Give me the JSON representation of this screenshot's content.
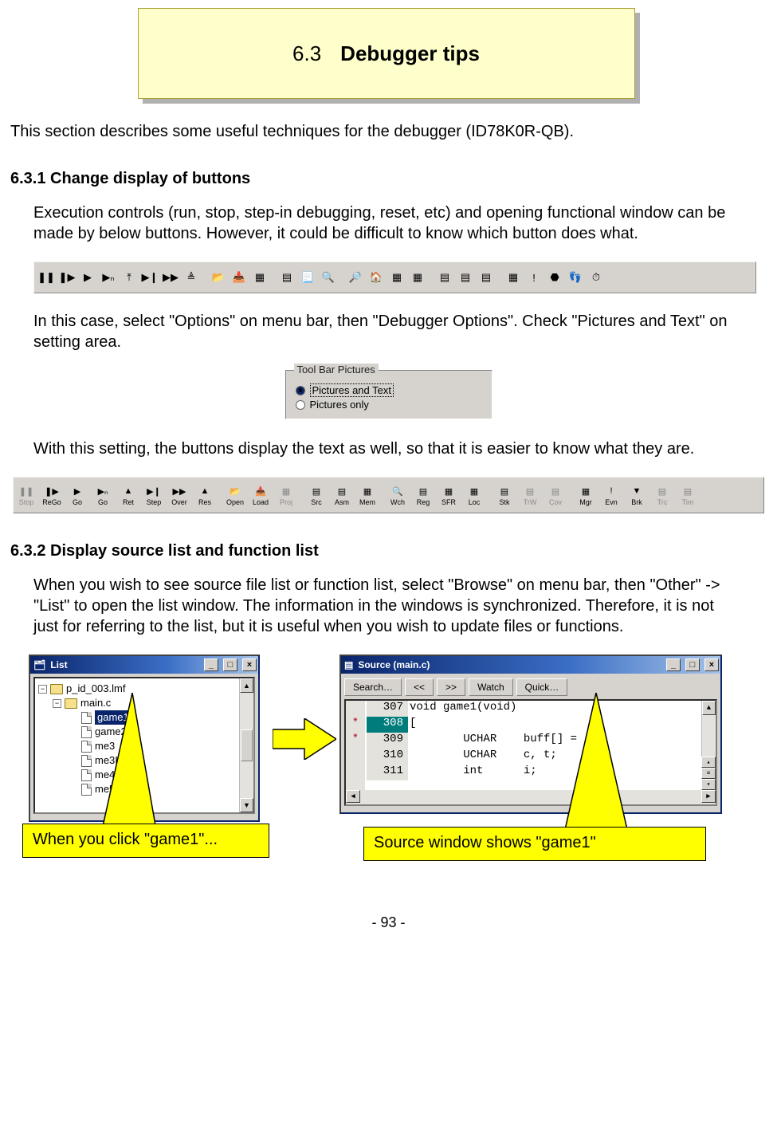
{
  "title": {
    "num": "6.3",
    "txt": "Debugger tips"
  },
  "intro": "This section describes some useful techniques for the debugger (ID78K0R-QB).",
  "s631": {
    "heading": "6.3.1 Change display of buttons",
    "p1": "Execution controls (run, stop, step-in debugging, reset, etc) and opening functional window can be made by below buttons. However, it could be difficult to know which button does what.",
    "p2": "In this case, select \"Options\" on menu bar, then \"Debugger Options\". Check \"Pictures and Text\" on setting area.",
    "p3": "With this setting, the buttons display the text as well, so that it is easier to know what they are."
  },
  "radio": {
    "legend": "Tool Bar Pictures",
    "opt1": "Pictures and Text",
    "opt2": "Pictures only",
    "selected": 0
  },
  "tb1_groups": [
    [
      "pause",
      "playstep",
      "play",
      "playn",
      "ret",
      "step",
      "over",
      "res"
    ],
    [
      "open",
      "load",
      "proj"
    ],
    [
      "src",
      "asm",
      "mem"
    ],
    [
      "wch",
      "reg",
      "sfr",
      "loc"
    ],
    [
      "stk",
      "trw",
      "cov"
    ],
    [
      "mgr",
      "evn",
      "brk",
      "trc",
      "tim"
    ]
  ],
  "tb2": [
    [
      {
        "l": "Stop",
        "d": true
      },
      {
        "l": "ReGo",
        "d": false
      },
      {
        "l": "Go",
        "d": false
      },
      {
        "l": "Go",
        "d": false
      },
      {
        "l": "Ret",
        "d": false
      },
      {
        "l": "Step",
        "d": false
      },
      {
        "l": "Over",
        "d": false
      },
      {
        "l": "Res",
        "d": false
      }
    ],
    [
      {
        "l": "Open",
        "d": false
      },
      {
        "l": "Load",
        "d": false
      },
      {
        "l": "Proj",
        "d": true
      }
    ],
    [
      {
        "l": "Src",
        "d": false
      },
      {
        "l": "Asm",
        "d": false
      },
      {
        "l": "Mem",
        "d": false
      }
    ],
    [
      {
        "l": "Wch",
        "d": false
      },
      {
        "l": "Reg",
        "d": false
      },
      {
        "l": "SFR",
        "d": false
      },
      {
        "l": "Loc",
        "d": false
      }
    ],
    [
      {
        "l": "Stk",
        "d": false
      },
      {
        "l": "TrW",
        "d": true
      },
      {
        "l": "Cov",
        "d": true
      }
    ],
    [
      {
        "l": "Mgr",
        "d": false
      },
      {
        "l": "Evn",
        "d": false
      },
      {
        "l": "Brk",
        "d": false
      },
      {
        "l": "Trc",
        "d": true
      },
      {
        "l": "Tim",
        "d": true
      }
    ]
  ],
  "tb2_icons": [
    "❚❚",
    "❚▶",
    "▶",
    "▶ₙ",
    "▲",
    "▶❙",
    "▶▶",
    "▲",
    "📂",
    "📥",
    "▦",
    "▤",
    "▤",
    "▦",
    "🔍",
    "▤",
    "▦",
    "▦",
    "▤",
    "▤",
    "▤",
    "▦",
    "!",
    "▼",
    "▤",
    "▤"
  ],
  "s632": {
    "heading": "6.3.2 Display source list and function list",
    "p1": "When you wish to see source file list or function list, select \"Browse\" on menu bar, then \"Other\" -> \"List\" to open the list window. The information in the windows is synchronized. Therefore, it is not just for referring to the list, but it is useful when you wish to update files or functions."
  },
  "listwin": {
    "title": "List",
    "root": "p_id_003.lmf",
    "file": "main.c",
    "items": [
      "game1",
      "game2",
      "me3",
      "me3Init",
      "me4",
      "me5"
    ],
    "selected": "game1"
  },
  "srcwin": {
    "title": "Source (main.c)",
    "buttons": [
      "Search…",
      "<<",
      ">>",
      "Watch",
      "Quick…"
    ],
    "gutter": [
      "",
      "*",
      "*",
      "",
      ""
    ],
    "lines": [
      "307",
      "308",
      "309",
      "310",
      "311"
    ],
    "code": [
      "void game1(void)",
      "[",
      "        UCHAR    buff[] =",
      "        UCHAR    c, t;",
      "        int      i;"
    ],
    "hl_index": 1
  },
  "callout1": "When you click \"game1\"...",
  "callout2": "Source window shows \"game1\"",
  "page": "- 93 -",
  "colors": {
    "title_bg": "#ffffcc",
    "callout_bg": "#ffff00",
    "ui_bg": "#d6d3ce",
    "titlebar_start": "#0a246a",
    "highlight": "#007c7c"
  }
}
